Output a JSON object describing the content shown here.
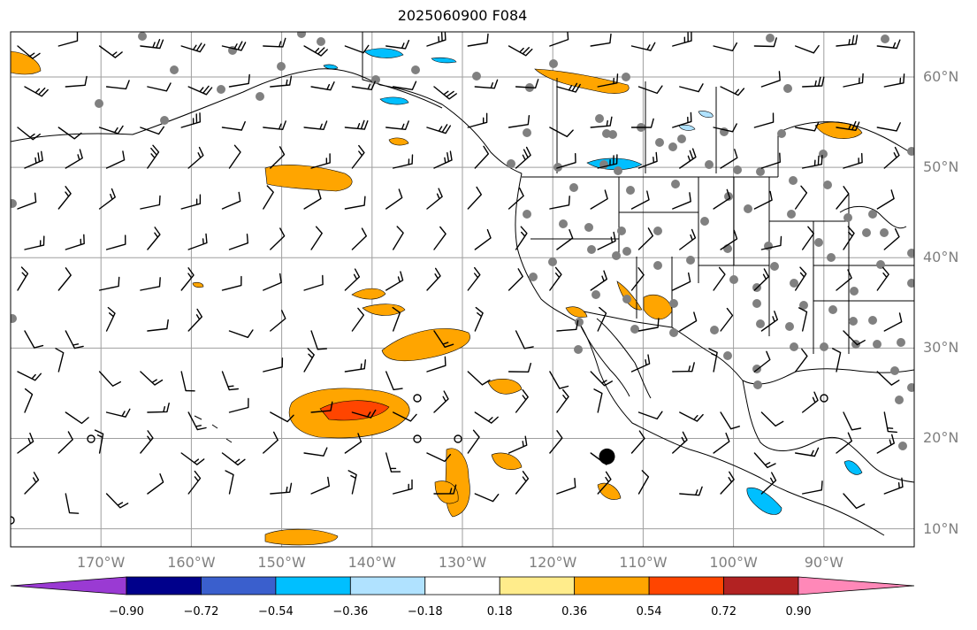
{
  "title": "2025060900 F084",
  "map": {
    "extent": {
      "lon_min": -180,
      "lon_max": -80,
      "lat_min": 8,
      "lat_max": 65
    },
    "projection": "PlateCarree",
    "gridlines": true,
    "lon_labels": [
      "170°W",
      "160°W",
      "150°W",
      "140°W",
      "130°W",
      "120°W",
      "110°W",
      "100°W",
      "90°W"
    ],
    "lon_values": [
      -170,
      -160,
      -150,
      -140,
      -130,
      -120,
      -110,
      -100,
      -90
    ],
    "lat_labels": [
      "60°N",
      "50°N",
      "40°N",
      "30°N",
      "20°N",
      "10°N"
    ],
    "lat_values": [
      60,
      50,
      40,
      30,
      20,
      10
    ],
    "marker": {
      "lon": -114,
      "lat": 18,
      "symbol": "large-black-dot"
    },
    "colors": {
      "station_dots": "#808080",
      "gridline": "#9e9e9e",
      "coast": "#000000"
    }
  },
  "colorbar": {
    "tick_labels": [
      "−0.90",
      "−0.72",
      "−0.54",
      "−0.36",
      "−0.18",
      "0.18",
      "0.36",
      "0.54",
      "0.72",
      "0.90"
    ],
    "under_color": "#9a3ad3",
    "over_color": "#ff88b8",
    "segment_colors": [
      "#00008b",
      "#3a5fcd",
      "#00bfff",
      "#b0e2ff",
      "#ffffff",
      "#ffec8b",
      "#ffa500",
      "#ff4500",
      "#b22222"
    ],
    "extend": "both"
  }
}
